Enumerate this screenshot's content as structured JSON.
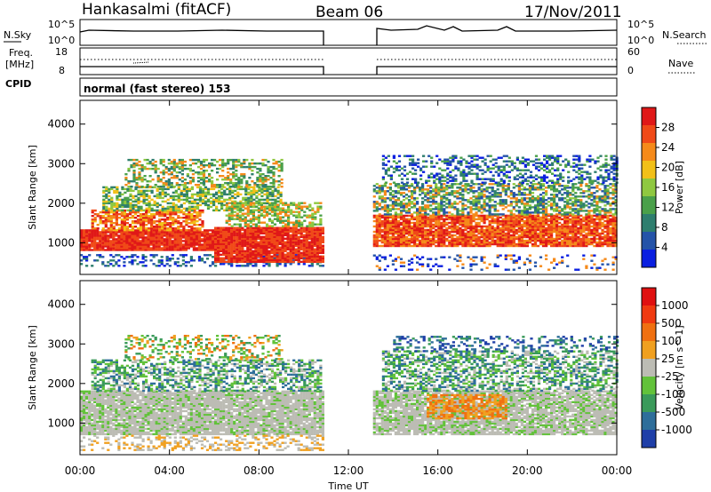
{
  "header": {
    "station": "Hankasalmi (fitACF)",
    "beam": "Beam 06",
    "date": "17/Nov/2011"
  },
  "strip": {
    "nsky_label": "N.Sky",
    "nsky_top": "10^5",
    "nsky_bottom": "10^0",
    "nsearch_top": "10^5",
    "nsearch_bottom": "10^0",
    "nsearch_label": "N.Search",
    "freq_label": "Freq.",
    "freq_unit": "[MHz]",
    "freq_top": "18",
    "freq_bottom": "8",
    "nave_top": "60",
    "nave_bottom": "0",
    "nave_label": "Nave",
    "cpid_label": "CPID",
    "cpid_value": "normal (fast stereo) 153"
  },
  "chart_data": {
    "type": "heatmap",
    "xlabel": "Time UT",
    "x_ticks": [
      "00:00",
      "04:00",
      "08:00",
      "12:00",
      "16:00",
      "20:00",
      "00:00"
    ],
    "ylabel": "Slant Range [km]",
    "y_ticks": [
      "1000",
      "2000",
      "3000",
      "4000"
    ],
    "ylim": [
      200,
      4600
    ],
    "data_gap_hours": [
      10.8,
      13.1
    ],
    "panels": [
      {
        "quantity": "Power",
        "colorbar_label": "Power [dB]",
        "colorbar_ticks": [
          "28",
          "24",
          "20",
          "16",
          "12",
          "8",
          "4"
        ],
        "colors": [
          "#0a1fe0",
          "#2453a8",
          "#2e7e6e",
          "#4aa04a",
          "#8fc840",
          "#f2c018",
          "#f58a1a",
          "#f04a18",
          "#e01818"
        ]
      },
      {
        "quantity": "Velocity",
        "colorbar_label": "Velocity [m s^-1]",
        "colorbar_ticks": [
          "1000",
          "500",
          "100",
          "25",
          "-25",
          "-100",
          "-500",
          "-1000"
        ],
        "colors": [
          "#1f3fa8",
          "#2e6e9a",
          "#3a9a5a",
          "#62c23a",
          "#bcbcb4",
          "#f0a020",
          "#f07010",
          "#f03a10",
          "#e01010"
        ]
      }
    ]
  }
}
